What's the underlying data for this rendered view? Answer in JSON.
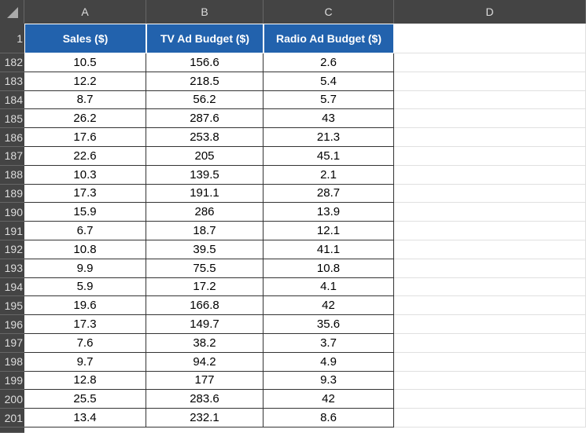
{
  "sheet": {
    "columns": [
      "A",
      "B",
      "C",
      "D"
    ],
    "header_row_number": 1,
    "header": [
      "Sales ($)",
      "TV Ad Budget ($)",
      "Radio Ad Budget ($)"
    ],
    "rows": [
      {
        "number": 182,
        "cells": [
          10.5,
          156.6,
          2.6
        ]
      },
      {
        "number": 183,
        "cells": [
          12.2,
          218.5,
          5.4
        ]
      },
      {
        "number": 184,
        "cells": [
          8.7,
          56.2,
          5.7
        ]
      },
      {
        "number": 185,
        "cells": [
          26.2,
          287.6,
          43
        ]
      },
      {
        "number": 186,
        "cells": [
          17.6,
          253.8,
          21.3
        ]
      },
      {
        "number": 187,
        "cells": [
          22.6,
          205,
          45.1
        ]
      },
      {
        "number": 188,
        "cells": [
          10.3,
          139.5,
          2.1
        ]
      },
      {
        "number": 189,
        "cells": [
          17.3,
          191.1,
          28.7
        ]
      },
      {
        "number": 190,
        "cells": [
          15.9,
          286,
          13.9
        ]
      },
      {
        "number": 191,
        "cells": [
          6.7,
          18.7,
          12.1
        ]
      },
      {
        "number": 192,
        "cells": [
          10.8,
          39.5,
          41.1
        ]
      },
      {
        "number": 193,
        "cells": [
          9.9,
          75.5,
          10.8
        ]
      },
      {
        "number": 194,
        "cells": [
          5.9,
          17.2,
          4.1
        ]
      },
      {
        "number": 195,
        "cells": [
          19.6,
          166.8,
          42
        ]
      },
      {
        "number": 196,
        "cells": [
          17.3,
          149.7,
          35.6
        ]
      },
      {
        "number": 197,
        "cells": [
          7.6,
          38.2,
          3.7
        ]
      },
      {
        "number": 198,
        "cells": [
          9.7,
          94.2,
          4.9
        ]
      },
      {
        "number": 199,
        "cells": [
          12.8,
          177,
          9.3
        ]
      },
      {
        "number": 200,
        "cells": [
          25.5,
          283.6,
          42
        ]
      },
      {
        "number": 201,
        "cells": [
          13.4,
          232.1,
          8.6
        ]
      }
    ]
  }
}
